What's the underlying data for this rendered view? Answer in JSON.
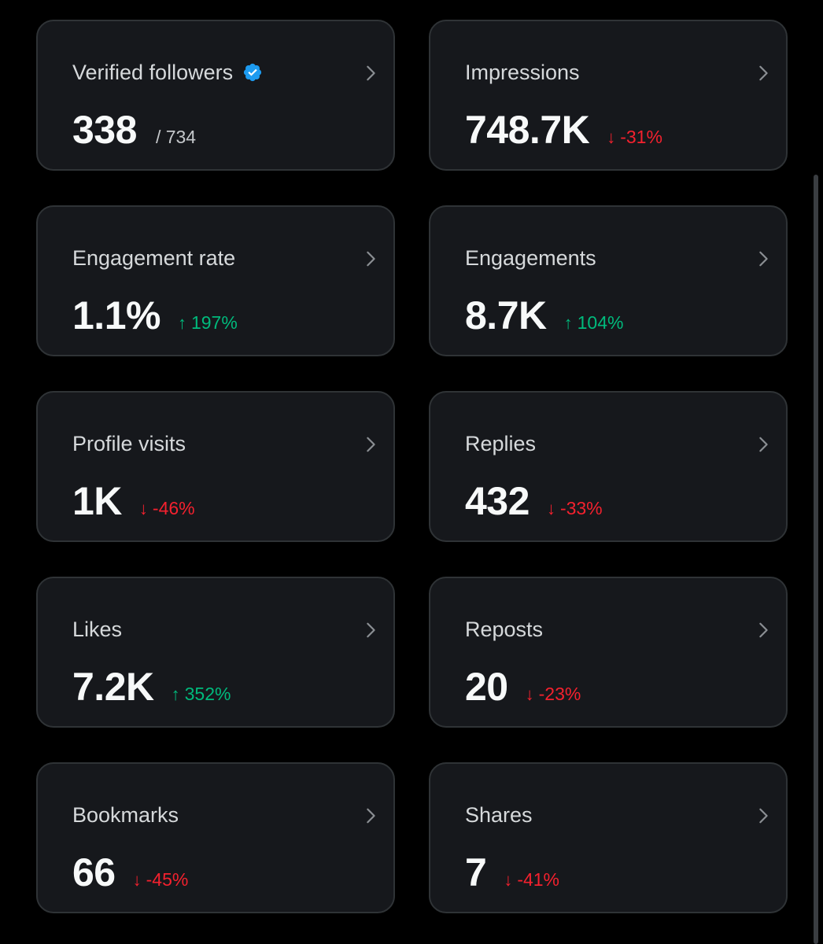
{
  "colors": {
    "background": "#000000",
    "card": "#16181c",
    "card_border": "#2f3336",
    "up": "#00ba7c",
    "down": "#f4212e",
    "verified_badge": "#1d9bf0"
  },
  "cards": [
    {
      "title": "Verified followers",
      "value": "338",
      "sub": "/ 734",
      "change": "",
      "direction": "",
      "badge": "verified-badge-icon"
    },
    {
      "title": "Impressions",
      "value": "748.7K",
      "sub": "",
      "change": "-31%",
      "direction": "down"
    },
    {
      "title": "Engagement rate",
      "value": "1.1%",
      "sub": "",
      "change": "197%",
      "direction": "up"
    },
    {
      "title": "Engagements",
      "value": "8.7K",
      "sub": "",
      "change": "104%",
      "direction": "up"
    },
    {
      "title": "Profile visits",
      "value": "1K",
      "sub": "",
      "change": "-46%",
      "direction": "down"
    },
    {
      "title": "Replies",
      "value": "432",
      "sub": "",
      "change": "-33%",
      "direction": "down"
    },
    {
      "title": "Likes",
      "value": "7.2K",
      "sub": "",
      "change": "352%",
      "direction": "up"
    },
    {
      "title": "Reposts",
      "value": "20",
      "sub": "",
      "change": "-23%",
      "direction": "down"
    },
    {
      "title": "Bookmarks",
      "value": "66",
      "sub": "",
      "change": "-45%",
      "direction": "down"
    },
    {
      "title": "Shares",
      "value": "7",
      "sub": "",
      "change": "-41%",
      "direction": "down"
    }
  ],
  "icons": {
    "chevron": "chevron-right-icon",
    "up": "arrow-up-icon",
    "down": "arrow-down-icon"
  }
}
